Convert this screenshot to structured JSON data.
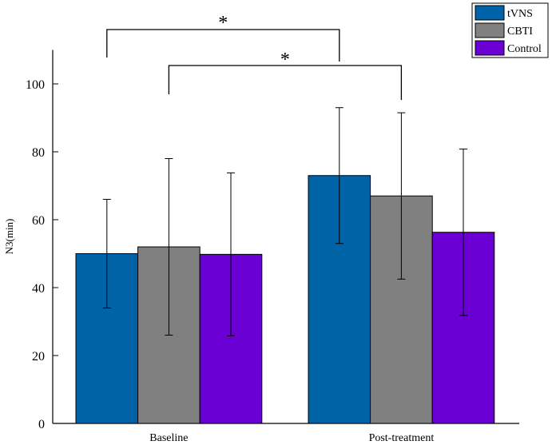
{
  "chart_data": {
    "type": "bar",
    "title": "",
    "xlabel": "",
    "ylabel": "N3(min)",
    "ylim": [
      0,
      110
    ],
    "yticks": [
      0,
      20,
      40,
      60,
      80,
      100
    ],
    "ytick_labels": [
      "0",
      "20",
      "40",
      "60",
      "80",
      "100"
    ],
    "categories": [
      "Baseline",
      "Post-treatment"
    ],
    "series": [
      {
        "name": "tVNS",
        "color": "#0063A8",
        "values": [
          50,
          73
        ],
        "error": [
          16,
          20
        ]
      },
      {
        "name": "CBTI",
        "color": "#808080",
        "values": [
          52,
          67
        ],
        "error": [
          26,
          24.5
        ]
      },
      {
        "name": "Control",
        "color": "#6A00D4",
        "values": [
          49.8,
          56.3
        ],
        "error": [
          24,
          24.5
        ]
      }
    ],
    "legend": {
      "position": "top-right",
      "entries": [
        "tVNS",
        "CBTI",
        "Control"
      ]
    },
    "significance": [
      {
        "label": "*",
        "from": "Baseline · tVNS",
        "to": "Post-treatment · tVNS"
      },
      {
        "label": "*",
        "from": "Baseline · CBTI",
        "to": "Post-treatment · CBTI"
      }
    ]
  }
}
